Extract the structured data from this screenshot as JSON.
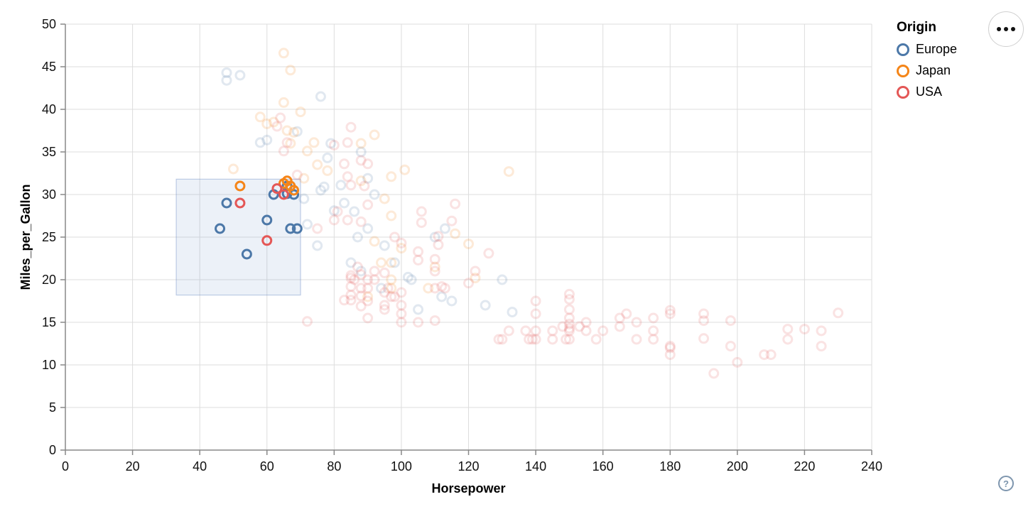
{
  "legend": {
    "title": "Origin",
    "items": [
      {
        "label": "Europe",
        "color": "#4c78a8"
      },
      {
        "label": "Japan",
        "color": "#f58518"
      },
      {
        "label": "USA",
        "color": "#e45756"
      }
    ]
  },
  "options_button": {
    "icon": "ellipsis-icon"
  },
  "help": {
    "label": "?"
  },
  "chart_data": {
    "type": "scatter",
    "title": "",
    "xlabel": "Horsepower",
    "ylabel": "Miles_per_Gallon",
    "xlim": [
      0,
      240
    ],
    "ylim": [
      0,
      50
    ],
    "xticks": [
      0,
      20,
      40,
      60,
      80,
      100,
      120,
      140,
      160,
      180,
      200,
      220,
      240
    ],
    "yticks": [
      0,
      5,
      10,
      15,
      20,
      25,
      30,
      35,
      40,
      45,
      50
    ],
    "grid": true,
    "legend_position": "top-right",
    "brush": {
      "x": [
        33,
        70
      ],
      "y": [
        18.2,
        31.8
      ]
    },
    "point_style": {
      "shape": "ring",
      "radius": 6,
      "stroke_width": 3,
      "unselected_opacity": 0.17
    },
    "series": [
      {
        "name": "Europe",
        "color": "#4c78a8",
        "selected": [
          [
            46,
            26
          ],
          [
            48,
            29
          ],
          [
            54,
            23
          ],
          [
            60,
            27
          ],
          [
            62,
            30
          ],
          [
            66,
            31
          ],
          [
            66,
            30.1
          ],
          [
            68,
            30
          ],
          [
            67,
            26
          ],
          [
            69,
            26
          ]
        ],
        "unselected": [
          [
            48,
            43.4
          ],
          [
            48,
            44.3
          ],
          [
            52,
            44
          ],
          [
            76,
            41.5
          ],
          [
            58,
            36.1
          ],
          [
            60,
            36.4
          ],
          [
            69,
            37.4
          ],
          [
            79,
            36
          ],
          [
            78,
            34.3
          ],
          [
            88,
            35
          ],
          [
            82,
            31.1
          ],
          [
            77,
            30.9
          ],
          [
            76,
            30.5
          ],
          [
            71,
            29.5
          ],
          [
            86,
            28
          ],
          [
            80,
            28.1
          ],
          [
            83,
            29
          ],
          [
            72,
            26.5
          ],
          [
            90,
            26
          ],
          [
            87,
            25
          ],
          [
            95,
            24
          ],
          [
            75,
            24
          ],
          [
            110,
            25
          ],
          [
            113,
            26
          ],
          [
            98,
            22
          ],
          [
            102,
            20.3
          ],
          [
            103,
            20
          ],
          [
            85,
            22
          ],
          [
            88,
            21
          ],
          [
            94,
            19
          ],
          [
            112,
            18
          ],
          [
            115,
            17.5
          ],
          [
            125,
            17
          ],
          [
            133,
            16.2
          ],
          [
            105,
            16.5
          ],
          [
            130,
            20
          ],
          [
            90,
            31.9
          ],
          [
            92,
            30
          ]
        ]
      },
      {
        "name": "Japan",
        "color": "#f58518",
        "selected": [
          [
            52,
            31
          ],
          [
            65,
            31.3
          ],
          [
            66,
            31.6
          ],
          [
            67,
            31
          ],
          [
            68,
            30.5
          ]
        ],
        "unselected": [
          [
            65,
            46.6
          ],
          [
            67,
            44.6
          ],
          [
            65,
            40.8
          ],
          [
            70,
            39.7
          ],
          [
            58,
            39.1
          ],
          [
            60,
            38.3
          ],
          [
            62,
            38.5
          ],
          [
            66,
            37.5
          ],
          [
            68,
            37.3
          ],
          [
            67,
            36
          ],
          [
            74,
            36.1
          ],
          [
            72,
            35.1
          ],
          [
            50,
            33
          ],
          [
            75,
            33.5
          ],
          [
            78,
            32.8
          ],
          [
            71,
            31.9
          ],
          [
            88,
            36
          ],
          [
            92,
            37
          ],
          [
            88,
            31.6
          ],
          [
            97,
            32.1
          ],
          [
            101,
            32.9
          ],
          [
            132,
            32.7
          ],
          [
            120,
            24.2
          ],
          [
            95,
            29.5
          ],
          [
            97,
            27.5
          ],
          [
            92,
            24.5
          ],
          [
            94,
            22
          ],
          [
            97,
            22
          ],
          [
            100,
            23.7
          ],
          [
            116,
            25.4
          ],
          [
            97,
            20
          ],
          [
            110,
            21.5
          ],
          [
            90,
            18
          ],
          [
            97,
            19
          ],
          [
            122,
            20.2
          ],
          [
            108,
            19
          ]
        ]
      },
      {
        "name": "USA",
        "color": "#e45756",
        "selected": [
          [
            52,
            29
          ],
          [
            60,
            24.6
          ],
          [
            63,
            30.7
          ],
          [
            65,
            30
          ]
        ],
        "unselected": [
          [
            64,
            39
          ],
          [
            63,
            38
          ],
          [
            66,
            36.1
          ],
          [
            65,
            35.1
          ],
          [
            85,
            37.9
          ],
          [
            84,
            36.1
          ],
          [
            80,
            35.8
          ],
          [
            88,
            34
          ],
          [
            90,
            33.6
          ],
          [
            83,
            33.6
          ],
          [
            84,
            32.1
          ],
          [
            85,
            31.1
          ],
          [
            89,
            31
          ],
          [
            69,
            32.3
          ],
          [
            75,
            26
          ],
          [
            80,
            27
          ],
          [
            81,
            28
          ],
          [
            84,
            27
          ],
          [
            88,
            26.8
          ],
          [
            90,
            28.8
          ],
          [
            98,
            25
          ],
          [
            100,
            24.3
          ],
          [
            106,
            28
          ],
          [
            106,
            26.7
          ],
          [
            116,
            28.9
          ],
          [
            115,
            26.9
          ],
          [
            111,
            25.1
          ],
          [
            111,
            24.1
          ],
          [
            105,
            23.3
          ],
          [
            105,
            22.3
          ],
          [
            110,
            22.4
          ],
          [
            126,
            23.1
          ],
          [
            85,
            20.5
          ],
          [
            85,
            20.2
          ],
          [
            85,
            19.2
          ],
          [
            85,
            18.2
          ],
          [
            86,
            20
          ],
          [
            87,
            21.5
          ],
          [
            88,
            20.6
          ],
          [
            88,
            19
          ],
          [
            88,
            18.1
          ],
          [
            88,
            16.9
          ],
          [
            90,
            20
          ],
          [
            90,
            19
          ],
          [
            90,
            17.5
          ],
          [
            92,
            20
          ],
          [
            92,
            21
          ],
          [
            95,
            18.5
          ],
          [
            95,
            17
          ],
          [
            95,
            16.5
          ],
          [
            97,
            18
          ],
          [
            98,
            18
          ],
          [
            100,
            17
          ],
          [
            100,
            16
          ],
          [
            100,
            18.5
          ],
          [
            95,
            20.8
          ],
          [
            96,
            19
          ],
          [
            85,
            17.6
          ],
          [
            83,
            17.6
          ],
          [
            72,
            15.1
          ],
          [
            100,
            15
          ],
          [
            105,
            15
          ],
          [
            110,
            15.2
          ],
          [
            90,
            15.5
          ],
          [
            110,
            21
          ],
          [
            110,
            19
          ],
          [
            113,
            19
          ],
          [
            112,
            19.2
          ],
          [
            120,
            19.6
          ],
          [
            122,
            21
          ],
          [
            129,
            13
          ],
          [
            130,
            13
          ],
          [
            132,
            14
          ],
          [
            137,
            14
          ],
          [
            138,
            13
          ],
          [
            139,
            13
          ],
          [
            140,
            17.5
          ],
          [
            140,
            16
          ],
          [
            140,
            14
          ],
          [
            140,
            13
          ],
          [
            145,
            13
          ],
          [
            145,
            14
          ],
          [
            148,
            14.5
          ],
          [
            149,
            13
          ],
          [
            150,
            18.3
          ],
          [
            150,
            17.7
          ],
          [
            150,
            16.5
          ],
          [
            150,
            15.5
          ],
          [
            150,
            14.8
          ],
          [
            150,
            14.3
          ],
          [
            150,
            14
          ],
          [
            150,
            13
          ],
          [
            153,
            14.5
          ],
          [
            155,
            15
          ],
          [
            155,
            14
          ],
          [
            158,
            13
          ],
          [
            160,
            14
          ],
          [
            165,
            15.5
          ],
          [
            165,
            14.5
          ],
          [
            167,
            16
          ],
          [
            170,
            13
          ],
          [
            170,
            15
          ],
          [
            175,
            15.5
          ],
          [
            175,
            14
          ],
          [
            175,
            13
          ],
          [
            180,
            12
          ],
          [
            180,
            16.4
          ],
          [
            180,
            16
          ],
          [
            180,
            12.2
          ],
          [
            180,
            11.2
          ],
          [
            190,
            16
          ],
          [
            190,
            15.2
          ],
          [
            190,
            13.1
          ],
          [
            193,
            9
          ],
          [
            198,
            15.2
          ],
          [
            198,
            12.2
          ],
          [
            200,
            10.3
          ],
          [
            208,
            11.2
          ],
          [
            210,
            11.2
          ],
          [
            215,
            14.2
          ],
          [
            215,
            13
          ],
          [
            220,
            14.2
          ],
          [
            225,
            14
          ],
          [
            225,
            12.2
          ],
          [
            230,
            16.1
          ]
        ]
      }
    ]
  }
}
